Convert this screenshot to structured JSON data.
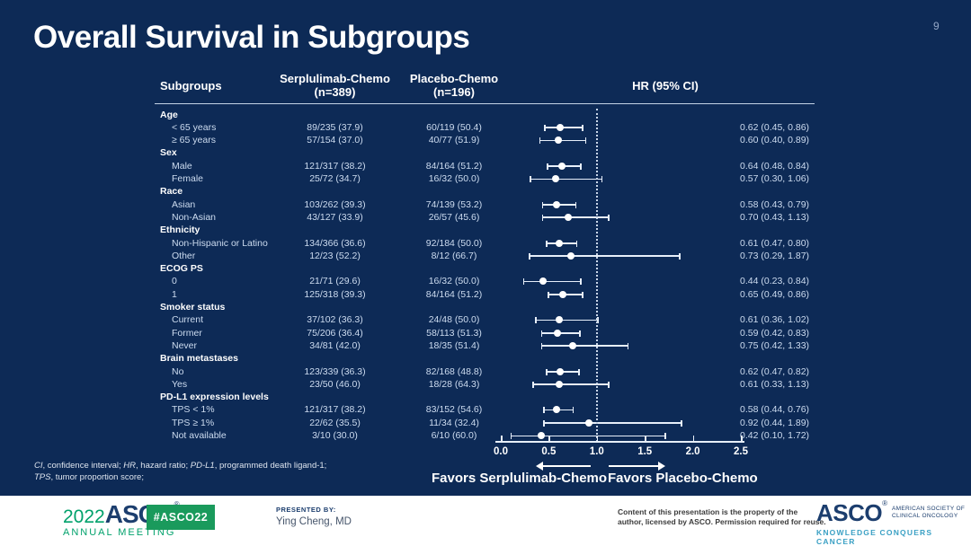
{
  "slide": {
    "page_number": "9",
    "title": "Overall Survival in Subgroups"
  },
  "colors": {
    "background": "#0d2a56",
    "text_light": "#cddcf0",
    "text_white": "#ffffff",
    "marker": "#ffffff",
    "asco_navy": "#1c3e6e",
    "asco_green": "#00a16b",
    "badge_green": "#1a9a5c",
    "kcc_teal": "#3aa0c4"
  },
  "table": {
    "headers": {
      "subgroups": "Subgroups",
      "serp": "Serplulimab-Chemo",
      "serp_n": "(n=389)",
      "placebo": "Placebo-Chemo",
      "placebo_n": "(n=196)",
      "hr": "HR (95% CI)"
    },
    "groups": [
      {
        "label": "Age",
        "rows": [
          {
            "label": "< 65 years",
            "serp": "89/235 (37.9)",
            "placebo": "60/119 (50.4)",
            "hr_text": "0.62 (0.45, 0.86)",
            "hr": 0.62,
            "lo": 0.45,
            "hi": 0.86
          },
          {
            "label": "≥ 65 years",
            "serp": "57/154 (37.0)",
            "placebo": "40/77 (51.9)",
            "hr_text": "0.60 (0.40, 0.89)",
            "hr": 0.6,
            "lo": 0.4,
            "hi": 0.89
          }
        ]
      },
      {
        "label": "Sex",
        "rows": [
          {
            "label": "Male",
            "serp": "121/317 (38.2)",
            "placebo": "84/164 (51.2)",
            "hr_text": "0.64 (0.48, 0.84)",
            "hr": 0.64,
            "lo": 0.48,
            "hi": 0.84
          },
          {
            "label": "Female",
            "serp": "25/72 (34.7)",
            "placebo": "16/32 (50.0)",
            "hr_text": "0.57 (0.30, 1.06)",
            "hr": 0.57,
            "lo": 0.3,
            "hi": 1.06
          }
        ]
      },
      {
        "label": "Race",
        "rows": [
          {
            "label": "Asian",
            "serp": "103/262 (39.3)",
            "placebo": "74/139 (53.2)",
            "hr_text": "0.58 (0.43, 0.79)",
            "hr": 0.58,
            "lo": 0.43,
            "hi": 0.79
          },
          {
            "label": "Non-Asian",
            "serp": "43/127 (33.9)",
            "placebo": "26/57 (45.6)",
            "hr_text": "0.70 (0.43, 1.13)",
            "hr": 0.7,
            "lo": 0.43,
            "hi": 1.13
          }
        ]
      },
      {
        "label": "Ethnicity",
        "rows": [
          {
            "label": "Non-Hispanic or Latino",
            "serp": "134/366 (36.6)",
            "placebo": "92/184 (50.0)",
            "hr_text": "0.61 (0.47, 0.80)",
            "hr": 0.61,
            "lo": 0.47,
            "hi": 0.8
          },
          {
            "label": "Other",
            "serp": "12/23 (52.2)",
            "placebo": "8/12 (66.7)",
            "hr_text": "0.73 (0.29, 1.87)",
            "hr": 0.73,
            "lo": 0.29,
            "hi": 1.87
          }
        ]
      },
      {
        "label": "ECOG PS",
        "rows": [
          {
            "label": "0",
            "serp": "21/71 (29.6)",
            "placebo": "16/32 (50.0)",
            "hr_text": "0.44 (0.23, 0.84)",
            "hr": 0.44,
            "lo": 0.23,
            "hi": 0.84
          },
          {
            "label": "1",
            "serp": "125/318 (39.3)",
            "placebo": "84/164 (51.2)",
            "hr_text": "0.65 (0.49, 0.86)",
            "hr": 0.65,
            "lo": 0.49,
            "hi": 0.86
          }
        ]
      },
      {
        "label": "Smoker status",
        "rows": [
          {
            "label": "Current",
            "serp": "37/102 (36.3)",
            "placebo": "24/48 (50.0)",
            "hr_text": "0.61 (0.36, 1.02)",
            "hr": 0.61,
            "lo": 0.36,
            "hi": 1.02
          },
          {
            "label": "Former",
            "serp": "75/206 (36.4)",
            "placebo": "58/113 (51.3)",
            "hr_text": "0.59 (0.42, 0.83)",
            "hr": 0.59,
            "lo": 0.42,
            "hi": 0.83
          },
          {
            "label": "Never",
            "serp": "34/81 (42.0)",
            "placebo": "18/35 (51.4)",
            "hr_text": "0.75 (0.42, 1.33)",
            "hr": 0.75,
            "lo": 0.42,
            "hi": 1.33
          }
        ]
      },
      {
        "label": "Brain metastases",
        "rows": [
          {
            "label": "No",
            "serp": "123/339 (36.3)",
            "placebo": "82/168 (48.8)",
            "hr_text": "0.62 (0.47, 0.82)",
            "hr": 0.62,
            "lo": 0.47,
            "hi": 0.82
          },
          {
            "label": "Yes",
            "serp": "23/50 (46.0)",
            "placebo": "18/28 (64.3)",
            "hr_text": "0.61 (0.33, 1.13)",
            "hr": 0.61,
            "lo": 0.33,
            "hi": 1.13
          }
        ]
      },
      {
        "label": "PD-L1 expression levels",
        "rows": [
          {
            "label": "TPS < 1%",
            "serp": "121/317 (38.2)",
            "placebo": "83/152 (54.6)",
            "hr_text": "0.58 (0.44, 0.76)",
            "hr": 0.58,
            "lo": 0.44,
            "hi": 0.76
          },
          {
            "label": "TPS ≥ 1%",
            "serp": "22/62 (35.5)",
            "placebo": "11/34 (32.4)",
            "hr_text": "0.92 (0.44, 1.89)",
            "hr": 0.92,
            "lo": 0.44,
            "hi": 1.89
          },
          {
            "label": "Not available",
            "serp": "3/10 (30.0)",
            "placebo": "6/10 (60.0)",
            "hr_text": "0.42 (0.10, 1.72)",
            "hr": 0.42,
            "lo": 0.1,
            "hi": 1.72
          }
        ]
      }
    ]
  },
  "axis": {
    "min": 0,
    "max": 2.5,
    "ticks": [
      "0.0",
      "0.5",
      "1.0",
      "1.5",
      "2.0",
      "2.5"
    ],
    "reference": 1.0
  },
  "favors": {
    "left": "Favors Serplulimab-Chemo",
    "right": "Favors Placebo-Chemo"
  },
  "footnote": {
    "lines": [
      [
        {
          "t": "CI",
          "i": true
        },
        {
          "t": ", confidence interval; "
        },
        {
          "t": "HR",
          "i": true
        },
        {
          "t": ", hazard ratio; "
        },
        {
          "t": "PD-L1",
          "i": true
        },
        {
          "t": ", programmed death ligand-1;"
        }
      ],
      [
        {
          "t": "TPS",
          "i": true
        },
        {
          "t": ", tumor proportion score;"
        }
      ]
    ]
  },
  "footer": {
    "logo_year": "2022",
    "logo_asco": "ASCO",
    "logo_reg": "®",
    "logo_meeting": "ANNUAL MEETING",
    "hashtag": "#ASCO22",
    "presented_label": "PRESENTED BY:",
    "presenter": "Ying Cheng, MD",
    "content_line1": "Content of this presentation is the property of the",
    "content_line2": "author, licensed by ASCO. Permission required for reuse.",
    "asco_right": "ASCO",
    "asco_right_reg": "®",
    "society_line1": "AMERICAN SOCIETY OF",
    "society_line2": "CLINICAL ONCOLOGY",
    "kcc": "KNOWLEDGE CONQUERS CANCER"
  },
  "chart_data": {
    "type": "scatter",
    "subtype": "forest-plot",
    "title": "Overall Survival in Subgroups",
    "xlabel": "HR (95% CI)",
    "xlim": [
      0,
      2.5
    ],
    "x_ticks": [
      0.0,
      0.5,
      1.0,
      1.5,
      2.0,
      2.5
    ],
    "reference_line": 1.0,
    "grid": false,
    "points": [
      {
        "group": "Age",
        "subgroup": "< 65 years",
        "hr": 0.62,
        "ci": [
          0.45,
          0.86
        ]
      },
      {
        "group": "Age",
        "subgroup": "≥ 65 years",
        "hr": 0.6,
        "ci": [
          0.4,
          0.89
        ]
      },
      {
        "group": "Sex",
        "subgroup": "Male",
        "hr": 0.64,
        "ci": [
          0.48,
          0.84
        ]
      },
      {
        "group": "Sex",
        "subgroup": "Female",
        "hr": 0.57,
        "ci": [
          0.3,
          1.06
        ]
      },
      {
        "group": "Race",
        "subgroup": "Asian",
        "hr": 0.58,
        "ci": [
          0.43,
          0.79
        ]
      },
      {
        "group": "Race",
        "subgroup": "Non-Asian",
        "hr": 0.7,
        "ci": [
          0.43,
          1.13
        ]
      },
      {
        "group": "Ethnicity",
        "subgroup": "Non-Hispanic or Latino",
        "hr": 0.61,
        "ci": [
          0.47,
          0.8
        ]
      },
      {
        "group": "Ethnicity",
        "subgroup": "Other",
        "hr": 0.73,
        "ci": [
          0.29,
          1.87
        ]
      },
      {
        "group": "ECOG PS",
        "subgroup": "0",
        "hr": 0.44,
        "ci": [
          0.23,
          0.84
        ]
      },
      {
        "group": "ECOG PS",
        "subgroup": "1",
        "hr": 0.65,
        "ci": [
          0.49,
          0.86
        ]
      },
      {
        "group": "Smoker status",
        "subgroup": "Current",
        "hr": 0.61,
        "ci": [
          0.36,
          1.02
        ]
      },
      {
        "group": "Smoker status",
        "subgroup": "Former",
        "hr": 0.59,
        "ci": [
          0.42,
          0.83
        ]
      },
      {
        "group": "Smoker status",
        "subgroup": "Never",
        "hr": 0.75,
        "ci": [
          0.42,
          1.33
        ]
      },
      {
        "group": "Brain metastases",
        "subgroup": "No",
        "hr": 0.62,
        "ci": [
          0.47,
          0.82
        ]
      },
      {
        "group": "Brain metastases",
        "subgroup": "Yes",
        "hr": 0.61,
        "ci": [
          0.33,
          1.13
        ]
      },
      {
        "group": "PD-L1 expression levels",
        "subgroup": "TPS < 1%",
        "hr": 0.58,
        "ci": [
          0.44,
          0.76
        ]
      },
      {
        "group": "PD-L1 expression levels",
        "subgroup": "TPS ≥ 1%",
        "hr": 0.92,
        "ci": [
          0.44,
          1.89
        ]
      },
      {
        "group": "PD-L1 expression levels",
        "subgroup": "Not available",
        "hr": 0.42,
        "ci": [
          0.1,
          1.72
        ]
      }
    ]
  }
}
